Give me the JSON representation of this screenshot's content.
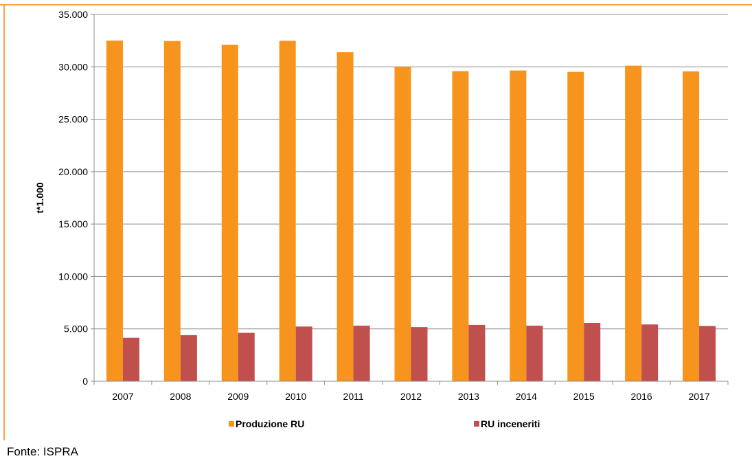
{
  "chart_data": {
    "type": "bar",
    "categories": [
      "2007",
      "2008",
      "2009",
      "2010",
      "2011",
      "2012",
      "2013",
      "2014",
      "2015",
      "2016",
      "2017"
    ],
    "series": [
      {
        "name": "Produzione RU",
        "color": "#f7941d",
        "values": [
          32500,
          32460,
          32110,
          32480,
          31390,
          30000,
          29590,
          29650,
          29520,
          30110,
          29570
        ]
      },
      {
        "name": "RU inceneriti",
        "color": "#c0504d",
        "values": [
          4150,
          4400,
          4620,
          5220,
          5300,
          5170,
          5380,
          5300,
          5570,
          5420,
          5270
        ]
      }
    ],
    "ylabel": "t*1.000",
    "ylim": [
      0,
      35000
    ],
    "yticks": [
      0,
      5000,
      10000,
      15000,
      20000,
      25000,
      30000,
      35000
    ],
    "ytick_labels": [
      "0",
      "5.000",
      "10.000",
      "15.000",
      "20.000",
      "25.000",
      "30.000",
      "35.000"
    ],
    "grid": true,
    "legend_placement": "bottom",
    "frame_color": "#f7a541"
  },
  "source_note": "Fonte: ISPRA"
}
